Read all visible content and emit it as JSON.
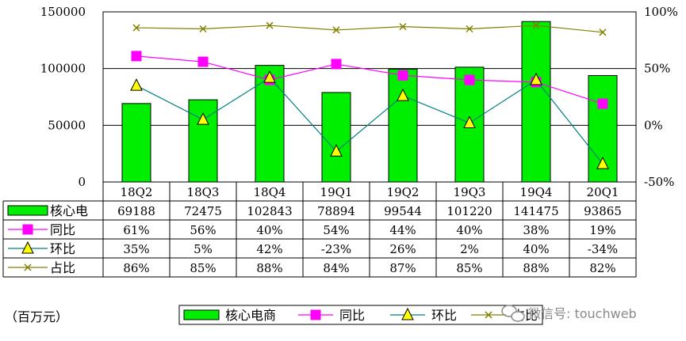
{
  "chart_data": {
    "type": "bar",
    "categories": [
      "18Q2",
      "18Q3",
      "18Q4",
      "19Q1",
      "19Q2",
      "19Q3",
      "19Q4",
      "20Q1"
    ],
    "left_axis": {
      "ticks": [
        "0",
        "50000",
        "100000",
        "150000"
      ],
      "ylim": [
        0,
        150000
      ]
    },
    "right_axis": {
      "ticks": [
        "-50%",
        "0%",
        "50%",
        "100%"
      ],
      "ylim": [
        -50,
        100
      ]
    },
    "series": [
      {
        "name": "核心电商",
        "table_label": "核心电",
        "type": "bar",
        "axis": "left",
        "color": "#00ee00",
        "values": [
          69188,
          72475,
          102843,
          78894,
          99544,
          101220,
          141475,
          93865
        ],
        "labels": [
          "69188",
          "72475",
          "102843",
          "78894",
          "99544",
          "101220",
          "141475",
          "93865"
        ]
      },
      {
        "name": "同比",
        "table_label": "同比",
        "type": "line",
        "axis": "right",
        "color": "#ff00ff",
        "marker": "square",
        "values": [
          61,
          56,
          40,
          54,
          44,
          40,
          38,
          19
        ],
        "labels": [
          "61%",
          "56%",
          "40%",
          "54%",
          "44%",
          "40%",
          "38%",
          "19%"
        ]
      },
      {
        "name": "环比",
        "table_label": "环比",
        "type": "line",
        "axis": "right",
        "color": "#008080",
        "marker": "triangle",
        "values": [
          35,
          5,
          42,
          -23,
          26,
          2,
          40,
          -34
        ],
        "labels": [
          "35%",
          "5%",
          "42%",
          "-23%",
          "26%",
          "2%",
          "40%",
          "-34%"
        ]
      },
      {
        "name": "占比",
        "table_label": "占比",
        "type": "line",
        "axis": "right",
        "color": "#808000",
        "marker": "x",
        "values": [
          86,
          85,
          88,
          84,
          87,
          85,
          88,
          82
        ],
        "labels": [
          "86%",
          "85%",
          "88%",
          "84%",
          "87%",
          "85%",
          "88%",
          "82%"
        ]
      }
    ],
    "unit_label": "（百万元）",
    "legend_position": "bottom",
    "grid": true
  },
  "watermark": "微信号: touchweb"
}
